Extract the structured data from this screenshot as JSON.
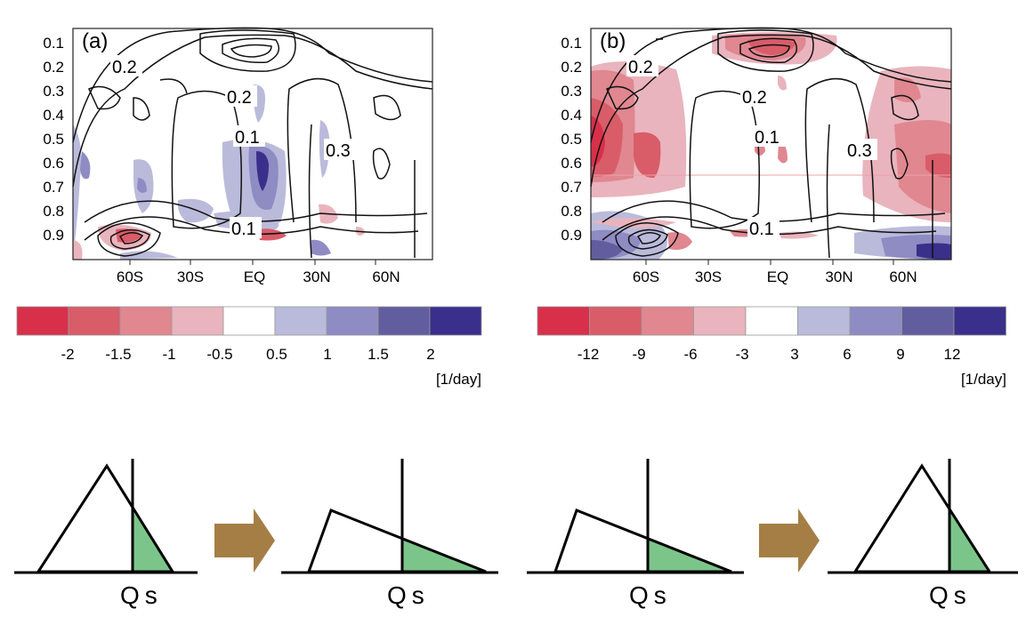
{
  "panels": [
    {
      "label": "(a)",
      "y_ticks": [
        "0.1",
        "0.2",
        "0.3",
        "0.4",
        "0.5",
        "0.6",
        "0.7",
        "0.8",
        "0.9"
      ],
      "x_ticks": [
        "60S",
        "30S",
        "EQ",
        "30N",
        "60N"
      ],
      "contour_labels": [
        "0.2",
        "0.2",
        "0.1",
        "0.3",
        "0.1"
      ],
      "colorbar": {
        "colors": [
          "#d8304a",
          "#d95c69",
          "#e08790",
          "#e9b4bd",
          "#ffffff",
          "#babbdb",
          "#8f8bc3",
          "#615d9f",
          "#3a2f8a"
        ],
        "ticks": [
          "-2",
          "-1.5",
          "-1",
          "-0.5",
          "0.5",
          "1",
          "1.5",
          "2"
        ],
        "unit": "[1/day]"
      }
    },
    {
      "label": "(b)",
      "y_ticks": [
        "0.1",
        "0.2",
        "0.3",
        "0.4",
        "0.5",
        "0.6",
        "0.7",
        "0.8",
        "0.9"
      ],
      "x_ticks": [
        "60S",
        "30S",
        "EQ",
        "30N",
        "60N"
      ],
      "contour_labels": [
        "0.2",
        "0.2",
        "0.1",
        "0.3",
        "0.1"
      ],
      "colorbar": {
        "colors": [
          "#d8304a",
          "#d95c69",
          "#e08790",
          "#e9b4bd",
          "#ffffff",
          "#babbdb",
          "#8f8bc3",
          "#615d9f",
          "#3a2f8a"
        ],
        "ticks": [
          "-12",
          "-9",
          "-6",
          "-3",
          "3",
          "6",
          "9",
          "12"
        ],
        "unit": "[1/day]"
      }
    }
  ],
  "schematic": {
    "threshold_label": "Qs",
    "arrow_color": "#a57e46",
    "fill_color": "#7cc58a"
  }
}
